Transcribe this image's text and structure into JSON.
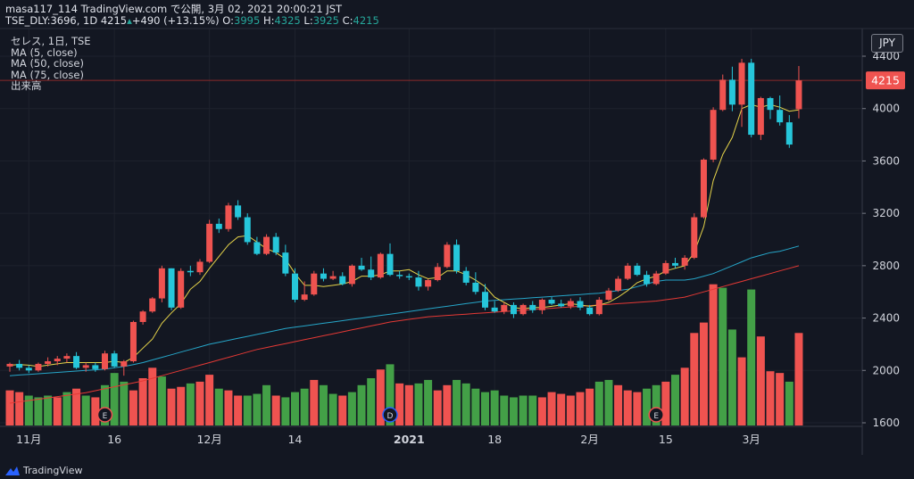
{
  "header": {
    "line1": "masa117_114 TradingView.com で公開, 3月 02, 2021 20:00:21 JST",
    "symbol_prefix": "TSE_DLY:3696, 1D 4215",
    "change": "+490 (+13.15%)",
    "o_label": "O:",
    "o_val": "3995",
    "h_label": "H:",
    "h_val": "4325",
    "l_label": "L:",
    "l_val": "3925",
    "c_label": "C:",
    "c_val": "4215"
  },
  "legend": {
    "title": "セレス, 1日, TSE",
    "ma5": "MA (5, close)",
    "ma50": "MA (50, close)",
    "ma75": "MA (75, close)",
    "volume": "出来高"
  },
  "currency": "JPY",
  "brand": "TradingView",
  "colors": {
    "background": "#131722",
    "up": "#ef5350",
    "down": "#26c6da",
    "vol_up": "#ef5350",
    "vol_down": "#43a047",
    "ma5": "#e6d44a",
    "ma50": "#26a6c9",
    "ma75": "#e53935",
    "price_line": "#8b2b2b",
    "grid": "#1e222d"
  },
  "chart_data": {
    "type": "candlestick",
    "ylim": [
      1600,
      4500
    ],
    "y_ticks": [
      "4400",
      "4000",
      "3600",
      "3200",
      "2800",
      "2400",
      "2000",
      "1600"
    ],
    "last_price": "4215",
    "x_tick_labels": [
      {
        "label": "11月",
        "index": 2
      },
      {
        "label": "16",
        "index": 11
      },
      {
        "label": "12月",
        "index": 21
      },
      {
        "label": "14",
        "index": 30
      },
      {
        "label": "2021",
        "index": 42
      },
      {
        "label": "18",
        "index": 51
      },
      {
        "label": "2月",
        "index": 61
      },
      {
        "label": "15",
        "index": 69
      },
      {
        "label": "3月",
        "index": 78
      }
    ],
    "markers": [
      {
        "label": "E",
        "index": 10
      },
      {
        "label": "D",
        "index": 40
      },
      {
        "label": "E",
        "index": 68
      }
    ],
    "ohlc": [
      [
        2030,
        2060,
        1990,
        2050
      ],
      [
        2050,
        2080,
        2000,
        2020
      ],
      [
        2020,
        2040,
        1980,
        2000
      ],
      [
        2000,
        2060,
        1990,
        2050
      ],
      [
        2050,
        2100,
        2030,
        2070
      ],
      [
        2070,
        2110,
        2040,
        2090
      ],
      [
        2090,
        2130,
        2060,
        2110
      ],
      [
        2110,
        2140,
        2010,
        2020
      ],
      [
        2020,
        2060,
        1990,
        2040
      ],
      [
        2040,
        2060,
        1990,
        2010
      ],
      [
        2010,
        2150,
        2000,
        2130
      ],
      [
        2130,
        2150,
        2020,
        2030
      ],
      [
        2030,
        2080,
        1960,
        2070
      ],
      [
        2070,
        2380,
        2060,
        2370
      ],
      [
        2370,
        2460,
        2350,
        2450
      ],
      [
        2450,
        2560,
        2440,
        2550
      ],
      [
        2550,
        2800,
        2520,
        2780
      ],
      [
        2780,
        2780,
        2460,
        2480
      ],
      [
        2480,
        2780,
        2470,
        2760
      ],
      [
        2760,
        2800,
        2720,
        2750
      ],
      [
        2750,
        2850,
        2730,
        2830
      ],
      [
        2830,
        3150,
        2820,
        3120
      ],
      [
        3120,
        3160,
        3050,
        3080
      ],
      [
        3080,
        3280,
        3060,
        3260
      ],
      [
        3260,
        3300,
        3150,
        3170
      ],
      [
        3170,
        3200,
        2960,
        2980
      ],
      [
        2980,
        3020,
        2880,
        2890
      ],
      [
        2890,
        3040,
        2880,
        3020
      ],
      [
        3020,
        3050,
        2880,
        2900
      ],
      [
        2900,
        2960,
        2720,
        2740
      ],
      [
        2740,
        2780,
        2520,
        2540
      ],
      [
        2540,
        2680,
        2530,
        2580
      ],
      [
        2580,
        2760,
        2570,
        2740
      ],
      [
        2740,
        2780,
        2680,
        2700
      ],
      [
        2700,
        2760,
        2690,
        2720
      ],
      [
        2720,
        2750,
        2650,
        2660
      ],
      [
        2660,
        2810,
        2640,
        2800
      ],
      [
        2800,
        2860,
        2760,
        2770
      ],
      [
        2770,
        2870,
        2690,
        2710
      ],
      [
        2710,
        2900,
        2700,
        2890
      ],
      [
        2890,
        2970,
        2720,
        2730
      ],
      [
        2730,
        2760,
        2700,
        2720
      ],
      [
        2720,
        2740,
        2690,
        2710
      ],
      [
        2710,
        2760,
        2610,
        2640
      ],
      [
        2640,
        2700,
        2610,
        2690
      ],
      [
        2690,
        2820,
        2680,
        2790
      ],
      [
        2790,
        2980,
        2780,
        2960
      ],
      [
        2960,
        3000,
        2740,
        2760
      ],
      [
        2760,
        2790,
        2650,
        2670
      ],
      [
        2670,
        2750,
        2580,
        2600
      ],
      [
        2600,
        2660,
        2460,
        2480
      ],
      [
        2480,
        2530,
        2440,
        2450
      ],
      [
        2450,
        2520,
        2430,
        2500
      ],
      [
        2500,
        2520,
        2400,
        2430
      ],
      [
        2430,
        2510,
        2420,
        2500
      ],
      [
        2500,
        2530,
        2440,
        2460
      ],
      [
        2460,
        2550,
        2430,
        2540
      ],
      [
        2540,
        2560,
        2500,
        2510
      ],
      [
        2510,
        2540,
        2480,
        2490
      ],
      [
        2490,
        2550,
        2470,
        2530
      ],
      [
        2530,
        2560,
        2460,
        2480
      ],
      [
        2480,
        2500,
        2420,
        2430
      ],
      [
        2430,
        2560,
        2420,
        2540
      ],
      [
        2540,
        2630,
        2530,
        2610
      ],
      [
        2610,
        2720,
        2600,
        2700
      ],
      [
        2700,
        2820,
        2690,
        2800
      ],
      [
        2800,
        2820,
        2720,
        2730
      ],
      [
        2730,
        2760,
        2640,
        2660
      ],
      [
        2660,
        2760,
        2650,
        2740
      ],
      [
        2740,
        2840,
        2730,
        2820
      ],
      [
        2820,
        2860,
        2780,
        2800
      ],
      [
        2800,
        2880,
        2770,
        2860
      ],
      [
        2860,
        3200,
        2850,
        3170
      ],
      [
        3170,
        3620,
        3160,
        3610
      ],
      [
        3610,
        4010,
        3590,
        3990
      ],
      [
        3990,
        4260,
        3980,
        4220
      ],
      [
        4220,
        4320,
        3980,
        4030
      ],
      [
        4030,
        4380,
        3860,
        4350
      ],
      [
        4350,
        4380,
        3780,
        3800
      ],
      [
        3800,
        4090,
        3760,
        4080
      ],
      [
        4080,
        4090,
        3920,
        3990
      ],
      [
        3990,
        4100,
        3870,
        3895
      ],
      [
        3895,
        3950,
        3700,
        3725
      ],
      [
        3995,
        4325,
        3925,
        4215
      ]
    ],
    "volume": [
      1730,
      1720,
      1700,
      1690,
      1700,
      1690,
      1720,
      1740,
      1700,
      1690,
      1760,
      1830,
      1780,
      1730,
      1800,
      1860,
      1810,
      1740,
      1750,
      1770,
      1780,
      1820,
      1740,
      1730,
      1700,
      1700,
      1710,
      1760,
      1700,
      1690,
      1720,
      1740,
      1790,
      1760,
      1710,
      1700,
      1720,
      1760,
      1800,
      1850,
      1880,
      1770,
      1760,
      1770,
      1790,
      1730,
      1760,
      1790,
      1770,
      1740,
      1720,
      1730,
      1700,
      1690,
      1700,
      1700,
      1690,
      1720,
      1710,
      1700,
      1720,
      1740,
      1780,
      1790,
      1760,
      1730,
      1720,
      1740,
      1760,
      1780,
      1820,
      1860,
      2060,
      2120,
      2340,
      2320,
      2080,
      1920,
      2310,
      2040,
      1840,
      1830,
      1780,
      2060
    ],
    "vol_up": [
      true,
      true,
      false,
      false,
      false,
      true,
      false,
      true,
      false,
      true,
      false,
      false,
      false,
      true,
      true,
      true,
      false,
      true,
      true,
      false,
      true,
      true,
      false,
      true,
      true,
      false,
      false,
      false,
      true,
      false,
      false,
      false,
      true,
      false,
      false,
      true,
      false,
      false,
      false,
      true,
      false,
      true,
      true,
      false,
      false,
      true,
      true,
      false,
      false,
      false,
      false,
      false,
      false,
      false,
      false,
      false,
      true,
      true,
      true,
      true,
      true,
      true,
      false,
      false,
      true,
      true,
      true,
      false,
      false,
      true,
      false,
      true,
      true,
      true,
      true,
      false,
      false,
      true,
      false,
      true,
      true,
      true,
      false,
      true
    ],
    "ma5": [
      2040,
      2045,
      2040,
      2030,
      2040,
      2050,
      2060,
      2060,
      2060,
      2060,
      2060,
      2070,
      2060,
      2100,
      2170,
      2240,
      2360,
      2440,
      2510,
      2620,
      2680,
      2780,
      2870,
      2960,
      3020,
      3030,
      2980,
      2930,
      2900,
      2850,
      2740,
      2650,
      2650,
      2640,
      2650,
      2660,
      2680,
      2720,
      2720,
      2730,
      2760,
      2760,
      2770,
      2730,
      2700,
      2710,
      2760,
      2760,
      2730,
      2690,
      2640,
      2560,
      2520,
      2480,
      2470,
      2480,
      2480,
      2490,
      2500,
      2510,
      2500,
      2490,
      2500,
      2520,
      2560,
      2610,
      2670,
      2700,
      2720,
      2760,
      2780,
      2800,
      2900,
      3100,
      3450,
      3650,
      3780,
      4000,
      4030,
      4010,
      4030,
      4010,
      3980,
      3990
    ],
    "ma50": [
      1960,
      1965,
      1970,
      1975,
      1980,
      1985,
      1990,
      1995,
      2000,
      2005,
      2010,
      2020,
      2030,
      2045,
      2060,
      2080,
      2100,
      2120,
      2140,
      2160,
      2180,
      2200,
      2215,
      2230,
      2245,
      2260,
      2275,
      2290,
      2305,
      2320,
      2330,
      2340,
      2350,
      2360,
      2370,
      2380,
      2390,
      2400,
      2410,
      2420,
      2430,
      2440,
      2450,
      2460,
      2470,
      2480,
      2490,
      2500,
      2510,
      2520,
      2530,
      2535,
      2540,
      2545,
      2550,
      2555,
      2560,
      2565,
      2570,
      2575,
      2580,
      2585,
      2590,
      2600,
      2610,
      2620,
      2640,
      2660,
      2680,
      2690,
      2690,
      2690,
      2700,
      2720,
      2740,
      2770,
      2800,
      2830,
      2860,
      2880,
      2900,
      2910,
      2930,
      2950
    ],
    "ma75": [
      1750,
      1760,
      1770,
      1780,
      1790,
      1800,
      1810,
      1820,
      1830,
      1845,
      1860,
      1875,
      1890,
      1905,
      1920,
      1940,
      1960,
      1980,
      2000,
      2020,
      2040,
      2060,
      2080,
      2100,
      2120,
      2140,
      2160,
      2175,
      2190,
      2205,
      2220,
      2235,
      2250,
      2265,
      2280,
      2295,
      2310,
      2325,
      2340,
      2355,
      2370,
      2380,
      2390,
      2400,
      2410,
      2415,
      2420,
      2425,
      2430,
      2435,
      2440,
      2445,
      2450,
      2455,
      2460,
      2465,
      2470,
      2475,
      2480,
      2485,
      2490,
      2495,
      2500,
      2505,
      2510,
      2515,
      2520,
      2525,
      2530,
      2540,
      2550,
      2560,
      2580,
      2600,
      2620,
      2640,
      2660,
      2680,
      2700,
      2720,
      2740,
      2760,
      2780,
      2800
    ]
  }
}
